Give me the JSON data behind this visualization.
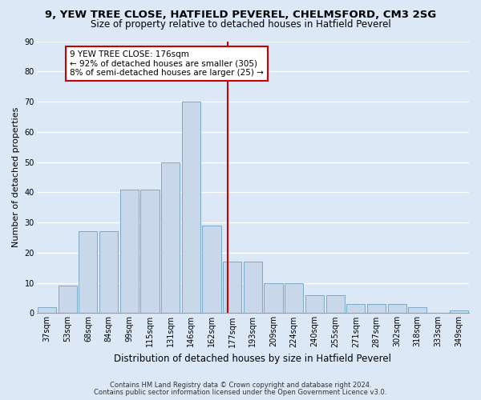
{
  "title1": "9, YEW TREE CLOSE, HATFIELD PEVEREL, CHELMSFORD, CM3 2SG",
  "title2": "Size of property relative to detached houses in Hatfield Peverel",
  "xlabel": "Distribution of detached houses by size in Hatfield Peverel",
  "ylabel": "Number of detached properties",
  "footnote1": "Contains HM Land Registry data © Crown copyright and database right 2024.",
  "footnote2": "Contains public sector information licensed under the Open Government Licence v3.0.",
  "bin_labels": [
    "37sqm",
    "53sqm",
    "68sqm",
    "84sqm",
    "99sqm",
    "115sqm",
    "131sqm",
    "146sqm",
    "162sqm",
    "177sqm",
    "193sqm",
    "209sqm",
    "224sqm",
    "240sqm",
    "255sqm",
    "271sqm",
    "287sqm",
    "302sqm",
    "318sqm",
    "333sqm",
    "349sqm"
  ],
  "bar_heights": [
    2,
    9,
    27,
    27,
    41,
    41,
    50,
    70,
    29,
    17,
    17,
    10,
    10,
    6,
    6,
    3,
    3,
    3,
    2,
    0,
    1
  ],
  "bar_color": "#c8d8ea",
  "bar_edge_color": "#7aaac8",
  "vline_x": 8.78,
  "vline_color": "#cc0000",
  "annotation_title": "9 YEW TREE CLOSE: 176sqm",
  "annotation_line1": "← 92% of detached houses are smaller (305)",
  "annotation_line2": "8% of semi-detached houses are larger (25) →",
  "annotation_box_color": "#cc0000",
  "ylim": [
    0,
    90
  ],
  "yticks": [
    0,
    10,
    20,
    30,
    40,
    50,
    60,
    70,
    80,
    90
  ],
  "bg_color": "#dce8f5",
  "plot_bg_color": "#dce8f5",
  "grid_color": "#ffffff",
  "title1_fontsize": 9.5,
  "title2_fontsize": 8.5,
  "xlabel_fontsize": 8.5,
  "ylabel_fontsize": 8,
  "tick_fontsize": 7,
  "annot_fontsize": 7.5,
  "footnote_fontsize": 6
}
